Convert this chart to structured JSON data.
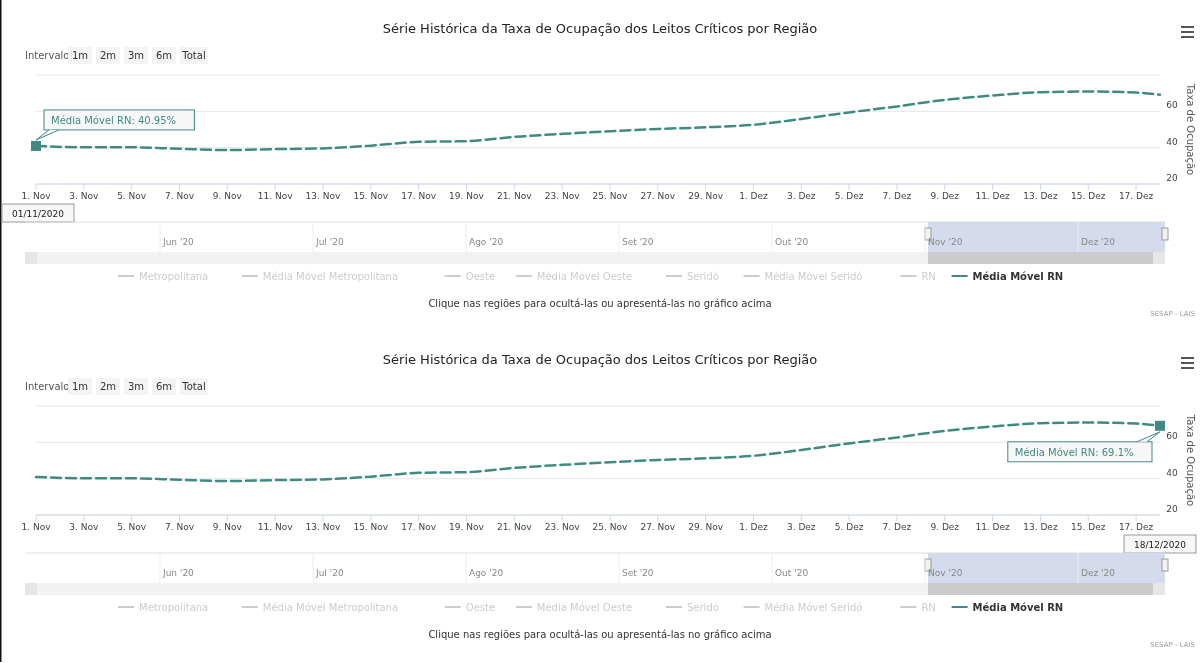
{
  "chart_data": [
    {
      "type": "line",
      "title": "Série Histórica da Taxa de Ocupação dos Leitos Críticos por Região",
      "ylabel": "Taxa de Ocupação",
      "x": [
        "2020-11-01",
        "2020-11-03",
        "2020-11-05",
        "2020-11-07",
        "2020-11-09",
        "2020-11-11",
        "2020-11-13",
        "2020-11-15",
        "2020-11-17",
        "2020-11-19",
        "2020-11-21",
        "2020-11-23",
        "2020-11-25",
        "2020-11-27",
        "2020-11-29",
        "2020-12-01",
        "2020-12-03",
        "2020-12-05",
        "2020-12-07",
        "2020-12-09",
        "2020-12-11",
        "2020-12-13",
        "2020-12-15",
        "2020-12-17",
        "2020-12-18"
      ],
      "series": [
        {
          "name": "Metropolitana",
          "color": "#cccccc",
          "values": [
            null,
            null,
            null,
            null,
            null,
            null,
            null,
            null,
            null,
            null,
            null,
            null,
            null,
            null,
            null,
            null,
            null,
            null,
            null,
            null,
            null,
            null,
            null,
            null,
            null
          ]
        },
        {
          "name": "Média Móvel Metropolitana",
          "color": "#cccccc",
          "values": [
            null,
            null,
            null,
            null,
            null,
            null,
            null,
            null,
            null,
            null,
            null,
            null,
            null,
            null,
            null,
            null,
            null,
            null,
            null,
            null,
            null,
            null,
            null,
            null,
            null
          ]
        },
        {
          "name": "Oeste",
          "color": "#cccccc",
          "values": [
            null,
            null,
            null,
            null,
            null,
            null,
            null,
            null,
            null,
            null,
            null,
            null,
            null,
            null,
            null,
            null,
            null,
            null,
            null,
            null,
            null,
            null,
            null,
            null,
            null
          ]
        },
        {
          "name": "Média Móvel Oeste",
          "color": "#cccccc",
          "values": [
            null,
            null,
            null,
            null,
            null,
            null,
            null,
            null,
            null,
            null,
            null,
            null,
            null,
            null,
            null,
            null,
            null,
            null,
            null,
            null,
            null,
            null,
            null,
            null,
            null
          ]
        },
        {
          "name": "Seridó",
          "color": "#cccccc",
          "values": [
            null,
            null,
            null,
            null,
            null,
            null,
            null,
            null,
            null,
            null,
            null,
            null,
            null,
            null,
            null,
            null,
            null,
            null,
            null,
            null,
            null,
            null,
            null,
            null,
            null
          ]
        },
        {
          "name": "Média Móvel Seridó",
          "color": "#cccccc",
          "values": [
            null,
            null,
            null,
            null,
            null,
            null,
            null,
            null,
            null,
            null,
            null,
            null,
            null,
            null,
            null,
            null,
            null,
            null,
            null,
            null,
            null,
            null,
            null,
            null,
            null
          ]
        },
        {
          "name": "RN",
          "color": "#cccccc",
          "values": [
            null,
            null,
            null,
            null,
            null,
            null,
            null,
            null,
            null,
            null,
            null,
            null,
            null,
            null,
            null,
            null,
            null,
            null,
            null,
            null,
            null,
            null,
            null,
            null,
            null
          ]
        },
        {
          "name": "Média Móvel RN",
          "color": "#3f8a85",
          "values": [
            40.95,
            40.2,
            40.2,
            39.4,
            38.7,
            39.2,
            39.6,
            41.1,
            43.2,
            43.6,
            45.9,
            47.6,
            49.0,
            50.3,
            51.2,
            52.6,
            55.8,
            59.4,
            62.7,
            66.3,
            68.7,
            70.5,
            70.9,
            70.3,
            69.1
          ]
        }
      ],
      "line_style": "dashed",
      "marker": "none",
      "grid": "y",
      "legend": "bottom",
      "xlim": [
        "2020-11-01",
        "2020-12-18"
      ],
      "xticks": [
        {
          "value": "2020-11-01",
          "label": "1. Nov"
        },
        {
          "value": "2020-11-03",
          "label": "3. Nov"
        },
        {
          "value": "2020-11-05",
          "label": "5. Nov"
        },
        {
          "value": "2020-11-07",
          "label": "7. Nov"
        },
        {
          "value": "2020-11-09",
          "label": "9. Nov"
        },
        {
          "value": "2020-11-11",
          "label": "11. Nov"
        },
        {
          "value": "2020-11-13",
          "label": "13. Nov"
        },
        {
          "value": "2020-11-15",
          "label": "15. Nov"
        },
        {
          "value": "2020-11-17",
          "label": "17. Nov"
        },
        {
          "value": "2020-11-19",
          "label": "19. Nov"
        },
        {
          "value": "2020-11-21",
          "label": "21. Nov"
        },
        {
          "value": "2020-11-23",
          "label": "23. Nov"
        },
        {
          "value": "2020-11-25",
          "label": "25. Nov"
        },
        {
          "value": "2020-11-27",
          "label": "27. Nov"
        },
        {
          "value": "2020-11-29",
          "label": "29. Nov"
        },
        {
          "value": "2020-12-01",
          "label": "1. Dez"
        },
        {
          "value": "2020-12-03",
          "label": "3. Dez"
        },
        {
          "value": "2020-12-05",
          "label": "5. Dez"
        },
        {
          "value": "2020-12-07",
          "label": "7. Dez"
        },
        {
          "value": "2020-12-09",
          "label": "9. Dez"
        },
        {
          "value": "2020-12-11",
          "label": "11. Dez"
        },
        {
          "value": "2020-12-13",
          "label": "13. Dez"
        },
        {
          "value": "2020-12-15",
          "label": "15. Dez"
        },
        {
          "value": "2020-12-17",
          "label": "17. Dez"
        }
      ],
      "ylim": [
        20,
        80
      ],
      "yticks": [
        20,
        40,
        60,
        {
          "value": 80,
          "label": null
        }
      ],
      "annotations": [
        "Clique nas regiões para ocultá-las ou apresentá-las no gráfico acima",
        "SESAP - LAIS",
        "Intervalo",
        "1m",
        "2m",
        "3m",
        "6m",
        "Total",
        "Jun '20",
        "Jul '20",
        "Ago '20",
        "Set '20",
        "Out '20",
        "Nov '20",
        "Dez '20",
        "01/11/2020",
        {
          "text": "Média Móvel RN: 40.95%",
          "x": "2020-11-01",
          "y": 40.95
        }
      ]
    },
    {
      "type": "line",
      "title": "Série Histórica da Taxa de Ocupação dos Leitos Críticos por Região",
      "ylabel": "Taxa de Ocupação",
      "x": [
        "2020-11-01",
        "2020-11-03",
        "2020-11-05",
        "2020-11-07",
        "2020-11-09",
        "2020-11-11",
        "2020-11-13",
        "2020-11-15",
        "2020-11-17",
        "2020-11-19",
        "2020-11-21",
        "2020-11-23",
        "2020-11-25",
        "2020-11-27",
        "2020-11-29",
        "2020-12-01",
        "2020-12-03",
        "2020-12-05",
        "2020-12-07",
        "2020-12-09",
        "2020-12-11",
        "2020-12-13",
        "2020-12-15",
        "2020-12-17",
        "2020-12-18"
      ],
      "series": [
        {
          "name": "Metropolitana",
          "color": "#cccccc",
          "values": [
            null,
            null,
            null,
            null,
            null,
            null,
            null,
            null,
            null,
            null,
            null,
            null,
            null,
            null,
            null,
            null,
            null,
            null,
            null,
            null,
            null,
            null,
            null,
            null,
            null
          ]
        },
        {
          "name": "Média Móvel Metropolitana",
          "color": "#cccccc",
          "values": [
            null,
            null,
            null,
            null,
            null,
            null,
            null,
            null,
            null,
            null,
            null,
            null,
            null,
            null,
            null,
            null,
            null,
            null,
            null,
            null,
            null,
            null,
            null,
            null,
            null
          ]
        },
        {
          "name": "Oeste",
          "color": "#cccccc",
          "values": [
            null,
            null,
            null,
            null,
            null,
            null,
            null,
            null,
            null,
            null,
            null,
            null,
            null,
            null,
            null,
            null,
            null,
            null,
            null,
            null,
            null,
            null,
            null,
            null,
            null
          ]
        },
        {
          "name": "Média Móvel Oeste",
          "color": "#cccccc",
          "values": [
            null,
            null,
            null,
            null,
            null,
            null,
            null,
            null,
            null,
            null,
            null,
            null,
            null,
            null,
            null,
            null,
            null,
            null,
            null,
            null,
            null,
            null,
            null,
            null,
            null
          ]
        },
        {
          "name": "Seridó",
          "color": "#cccccc",
          "values": [
            null,
            null,
            null,
            null,
            null,
            null,
            null,
            null,
            null,
            null,
            null,
            null,
            null,
            null,
            null,
            null,
            null,
            null,
            null,
            null,
            null,
            null,
            null,
            null,
            null
          ]
        },
        {
          "name": "Média Móvel Seridó",
          "color": "#cccccc",
          "values": [
            null,
            null,
            null,
            null,
            null,
            null,
            null,
            null,
            null,
            null,
            null,
            null,
            null,
            null,
            null,
            null,
            null,
            null,
            null,
            null,
            null,
            null,
            null,
            null,
            null
          ]
        },
        {
          "name": "RN",
          "color": "#cccccc",
          "values": [
            null,
            null,
            null,
            null,
            null,
            null,
            null,
            null,
            null,
            null,
            null,
            null,
            null,
            null,
            null,
            null,
            null,
            null,
            null,
            null,
            null,
            null,
            null,
            null,
            null
          ]
        },
        {
          "name": "Média Móvel RN",
          "color": "#3f8a85",
          "values": [
            40.95,
            40.2,
            40.2,
            39.4,
            38.7,
            39.2,
            39.6,
            41.1,
            43.2,
            43.6,
            45.9,
            47.6,
            49.0,
            50.3,
            51.2,
            52.6,
            55.8,
            59.4,
            62.7,
            66.3,
            68.7,
            70.5,
            70.9,
            70.3,
            69.1
          ]
        }
      ],
      "line_style": "dashed",
      "marker": "none",
      "grid": "y",
      "legend": "bottom",
      "xlim": [
        "2020-11-01",
        "2020-12-18"
      ],
      "xticks": [
        {
          "value": "2020-11-01",
          "label": "1. Nov"
        },
        {
          "value": "2020-11-03",
          "label": "3. Nov"
        },
        {
          "value": "2020-11-05",
          "label": "5. Nov"
        },
        {
          "value": "2020-11-07",
          "label": "7. Nov"
        },
        {
          "value": "2020-11-09",
          "label": "9. Nov"
        },
        {
          "value": "2020-11-11",
          "label": "11. Nov"
        },
        {
          "value": "2020-11-13",
          "label": "13. Nov"
        },
        {
          "value": "2020-11-15",
          "label": "15. Nov"
        },
        {
          "value": "2020-11-17",
          "label": "17. Nov"
        },
        {
          "value": "2020-11-19",
          "label": "19. Nov"
        },
        {
          "value": "2020-11-21",
          "label": "21. Nov"
        },
        {
          "value": "2020-11-23",
          "label": "23. Nov"
        },
        {
          "value": "2020-11-25",
          "label": "25. Nov"
        },
        {
          "value": "2020-11-27",
          "label": "27. Nov"
        },
        {
          "value": "2020-11-29",
          "label": "29. Nov"
        },
        {
          "value": "2020-12-01",
          "label": "1. Dez"
        },
        {
          "value": "2020-12-03",
          "label": "3. Dez"
        },
        {
          "value": "2020-12-05",
          "label": "5. Dez"
        },
        {
          "value": "2020-12-07",
          "label": "7. Dez"
        },
        {
          "value": "2020-12-09",
          "label": "9. Dez"
        },
        {
          "value": "2020-12-11",
          "label": "11. Dez"
        },
        {
          "value": "2020-12-13",
          "label": "13. Dez"
        },
        {
          "value": "2020-12-15",
          "label": "15. Dez"
        },
        {
          "value": "2020-12-17",
          "label": "17. Dez"
        }
      ],
      "ylim": [
        20,
        80
      ],
      "yticks": [
        20,
        40,
        60,
        {
          "value": 80,
          "label": null
        }
      ],
      "annotations": [
        "Clique nas regiões para ocultá-las ou apresentá-las no gráfico acima",
        "SESAP - LAIS",
        "Intervalo",
        "1m",
        "2m",
        "3m",
        "6m",
        "Total",
        "Jun '20",
        "Jul '20",
        "Ago '20",
        "Set '20",
        "Out '20",
        "Nov '20",
        "Dez '20",
        "18/12/2020",
        {
          "text": "Média Móvel RN: 69.1%",
          "x": "2020-12-18",
          "y": 69.1
        }
      ]
    }
  ]
}
